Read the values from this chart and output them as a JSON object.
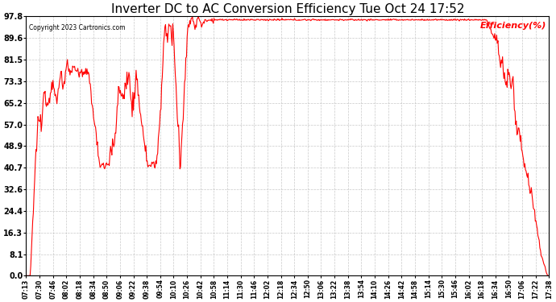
{
  "title": "Inverter DC to AC Conversion Efficiency Tue Oct 24 17:52",
  "copyright": "Copyright 2023 Cartronics.com",
  "legend_label": "Efficiency(%)",
  "line_color": "red",
  "background_color": "white",
  "grid_color": "#bbbbbb",
  "title_fontsize": 11,
  "yticks": [
    0.0,
    8.1,
    16.3,
    24.4,
    32.6,
    40.7,
    48.9,
    57.0,
    65.2,
    73.3,
    81.5,
    89.6,
    97.8
  ],
  "xtick_labels": [
    "07:13",
    "07:30",
    "07:46",
    "08:02",
    "08:18",
    "08:34",
    "08:50",
    "09:06",
    "09:22",
    "09:38",
    "09:54",
    "10:10",
    "10:26",
    "10:42",
    "10:58",
    "11:14",
    "11:30",
    "11:46",
    "12:02",
    "12:18",
    "12:34",
    "12:50",
    "13:06",
    "13:22",
    "13:38",
    "13:54",
    "14:10",
    "14:26",
    "14:42",
    "14:58",
    "15:14",
    "15:30",
    "15:46",
    "16:02",
    "16:18",
    "16:34",
    "16:50",
    "17:06",
    "17:22",
    "17:38"
  ],
  "ymin": 0.0,
  "ymax": 97.8
}
